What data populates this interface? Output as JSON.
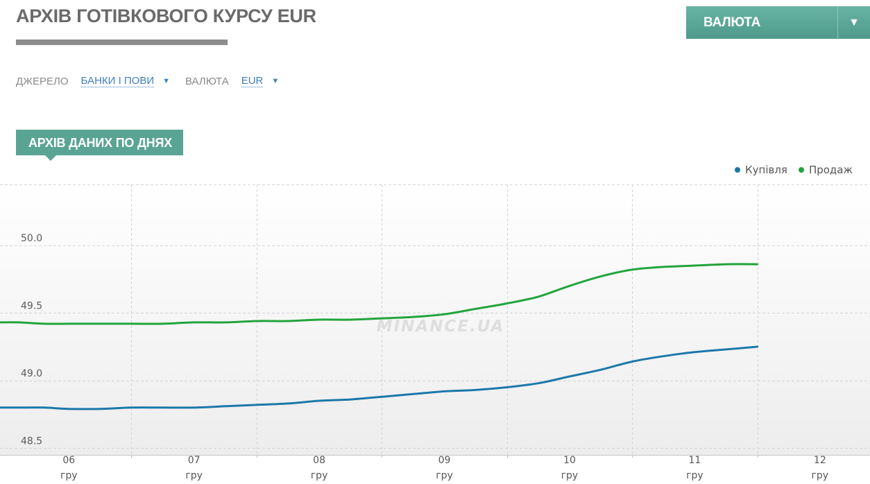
{
  "header": {
    "title": "АРХІВ ГОТІВКОВОГО КУРСУ EUR",
    "currency_dropdown": {
      "label": "ВАЛЮТА",
      "arrow": "▼"
    }
  },
  "filters": {
    "source_label": "ДЖЕРЕЛО",
    "source_value": "БАНКИ І ПОВИ",
    "currency_label": "ВАЛЮТА",
    "currency_value": "EUR",
    "arrow": "▼"
  },
  "section": {
    "tab_label": "АРХІВ ДАНИХ ПО ДНЯХ"
  },
  "watermark": "MINANCE.UA",
  "colors": {
    "accent": "#5aa494",
    "buy": "#1b78a8",
    "sell": "#22a43c",
    "link": "#3f7fc1"
  },
  "chart_data": {
    "type": "line",
    "title": "",
    "xlabel": "",
    "ylabel": "",
    "x_ticks": [
      {
        "day": "06",
        "month": "гру"
      },
      {
        "day": "07",
        "month": "гру"
      },
      {
        "day": "08",
        "month": "гру"
      },
      {
        "day": "09",
        "month": "гру"
      },
      {
        "day": "10",
        "month": "гру"
      },
      {
        "day": "11",
        "month": "гру"
      },
      {
        "day": "12",
        "month": "гру"
      }
    ],
    "xlim": [
      5.45,
      12.4
    ],
    "ylim": [
      48.45,
      50.45
    ],
    "y_ticks": [
      "50.0",
      "49.5",
      "49.0",
      "48.5"
    ],
    "y_tick_values": [
      50.0,
      49.5,
      49.0,
      48.5
    ],
    "grid": true,
    "legend_position": "top-right",
    "series": [
      {
        "name": "Купівля",
        "color": "#1b78a8",
        "x": [
          5.45,
          5.6,
          5.8,
          6.0,
          6.25,
          6.5,
          6.75,
          7.0,
          7.25,
          7.5,
          7.75,
          8.0,
          8.25,
          8.5,
          8.75,
          9.0,
          9.25,
          9.5,
          9.75,
          10.0,
          10.25,
          10.5,
          10.75,
          11.0,
          11.25,
          11.5
        ],
        "values": [
          48.8,
          48.8,
          48.8,
          48.79,
          48.79,
          48.8,
          48.8,
          48.8,
          48.81,
          48.82,
          48.83,
          48.85,
          48.86,
          48.88,
          48.9,
          48.92,
          48.93,
          48.95,
          48.98,
          49.03,
          49.08,
          49.14,
          49.18,
          49.21,
          49.23,
          49.25
        ]
      },
      {
        "name": "Продаж",
        "color": "#22a43c",
        "x": [
          5.45,
          5.6,
          5.8,
          6.0,
          6.25,
          6.5,
          6.75,
          7.0,
          7.25,
          7.5,
          7.75,
          8.0,
          8.25,
          8.5,
          8.75,
          9.0,
          9.25,
          9.5,
          9.75,
          10.0,
          10.25,
          10.5,
          10.75,
          11.0,
          11.25,
          11.5
        ],
        "values": [
          49.43,
          49.43,
          49.42,
          49.42,
          49.42,
          49.42,
          49.42,
          49.43,
          49.43,
          49.44,
          49.44,
          49.45,
          49.45,
          49.46,
          49.47,
          49.49,
          49.53,
          49.57,
          49.62,
          49.7,
          49.77,
          49.82,
          49.84,
          49.85,
          49.86,
          49.86
        ]
      }
    ]
  }
}
